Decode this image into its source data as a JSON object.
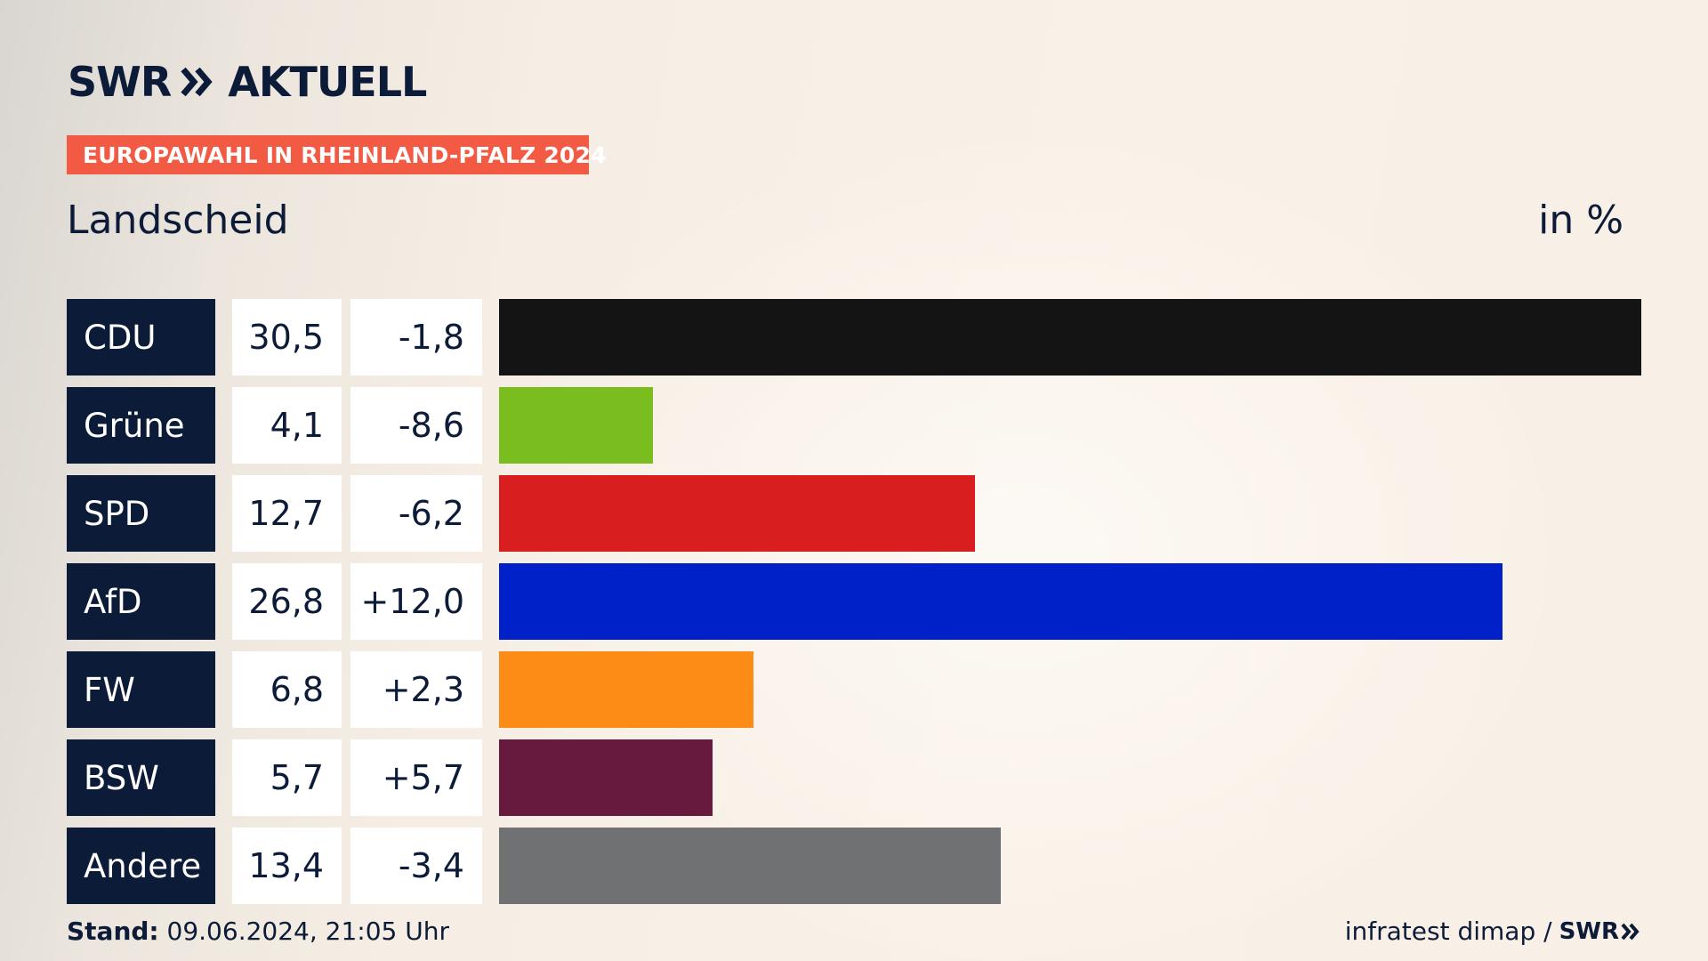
{
  "brand": {
    "logo_text": "SWR",
    "logo_suffix": "AKTUELL",
    "accent_color": "#f35a43",
    "navy_color": "#0c1b37"
  },
  "banner": {
    "label": "EUROPAWAHL IN RHEINLAND-PFALZ 2024"
  },
  "header": {
    "place": "Landscheid",
    "unit": "in %"
  },
  "footer": {
    "stand_label": "Stand:",
    "stand_value": "09.06.2024, 21:05 Uhr",
    "source": "infratest dimap /",
    "source_logo": "SWR"
  },
  "chart_data": {
    "type": "bar",
    "orientation": "horizontal",
    "title": "Europawahl in Rheinland-Pfalz 2024 – Landscheid",
    "unit": "in %",
    "categories": [
      "CDU",
      "Grüne",
      "SPD",
      "AfD",
      "FW",
      "BSW",
      "Andere"
    ],
    "values": [
      30.5,
      4.1,
      12.7,
      26.8,
      6.8,
      5.7,
      13.4
    ],
    "value_labels": [
      "30,5",
      "4,1",
      "12,7",
      "26,8",
      "6,8",
      "5,7",
      "13,4"
    ],
    "diff_labels": [
      "-1,8",
      "-8,6",
      "-6,2",
      "+12,0",
      "+2,3",
      "+5,7",
      "-3,4"
    ],
    "colors": [
      "#141414",
      "#7abd1e",
      "#d81e1f",
      "#0020c8",
      "#fd8c17",
      "#671a3e",
      "#707173"
    ],
    "xlim": [
      0,
      30.5
    ]
  }
}
